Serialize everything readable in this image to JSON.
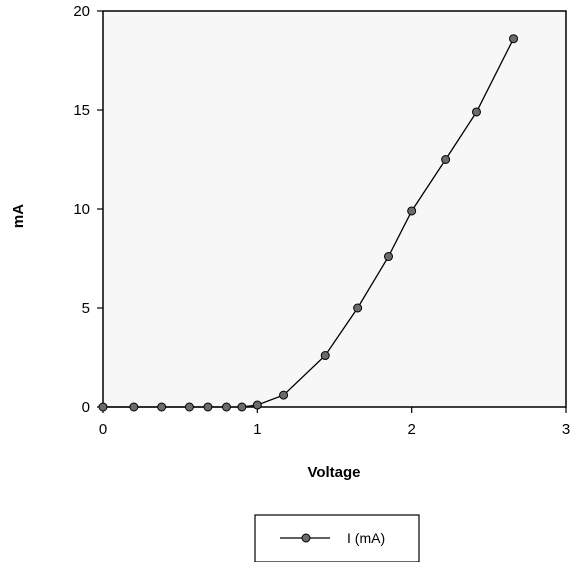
{
  "chart_data": {
    "type": "scatter",
    "title": "",
    "xlabel": "Voltage",
    "ylabel": "mA",
    "xlim": [
      0,
      3
    ],
    "ylim": [
      0,
      20
    ],
    "x_ticks": [
      "0",
      "1",
      "2",
      "3"
    ],
    "y_ticks": [
      "0",
      "5",
      "10",
      "15",
      "20"
    ],
    "grid": false,
    "legend": "bottom-center",
    "colors": {
      "marker": "#6b6b6b",
      "line": "#000000",
      "plot_bg": "#f7f7f7"
    },
    "series": [
      {
        "name": "I (mA)",
        "x": [
          0.0,
          0.2,
          0.38,
          0.56,
          0.68,
          0.8,
          0.9,
          1.0,
          1.17,
          1.44,
          1.65,
          1.85,
          2.0,
          2.22,
          2.42,
          2.66
        ],
        "y": [
          0.0,
          0.0,
          0.0,
          0.0,
          0.0,
          0.0,
          0.0,
          0.1,
          0.6,
          2.6,
          5.0,
          7.6,
          9.9,
          12.5,
          14.9,
          18.6
        ]
      }
    ]
  }
}
